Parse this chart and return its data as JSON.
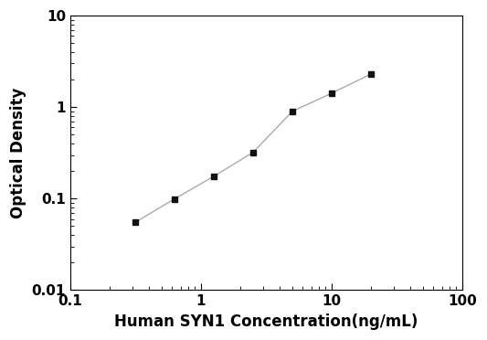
{
  "x_values": [
    0.313,
    0.625,
    1.25,
    2.5,
    5.0,
    10.0,
    20.0
  ],
  "y_values": [
    0.055,
    0.099,
    0.175,
    0.32,
    0.9,
    1.42,
    2.3
  ],
  "xlabel": "Human SYN1 Concentration(ng/mL)",
  "ylabel": "Optical Density",
  "xlim": [
    0.1,
    100
  ],
  "ylim": [
    0.01,
    10
  ],
  "line_color": "#aaaaaa",
  "marker": "s",
  "marker_color": "#111111",
  "marker_size": 5,
  "line_width": 1.0,
  "line_style": "-",
  "background_color": "#ffffff",
  "xlabel_fontsize": 12,
  "ylabel_fontsize": 12,
  "tick_fontsize": 11,
  "x_ticks": [
    0.1,
    1,
    10,
    100
  ],
  "x_tick_labels": [
    "0.1",
    "1",
    "10",
    "100"
  ],
  "y_ticks": [
    0.01,
    0.1,
    1,
    10
  ],
  "y_tick_labels": [
    "0.01",
    "0.1",
    "1",
    "10"
  ]
}
